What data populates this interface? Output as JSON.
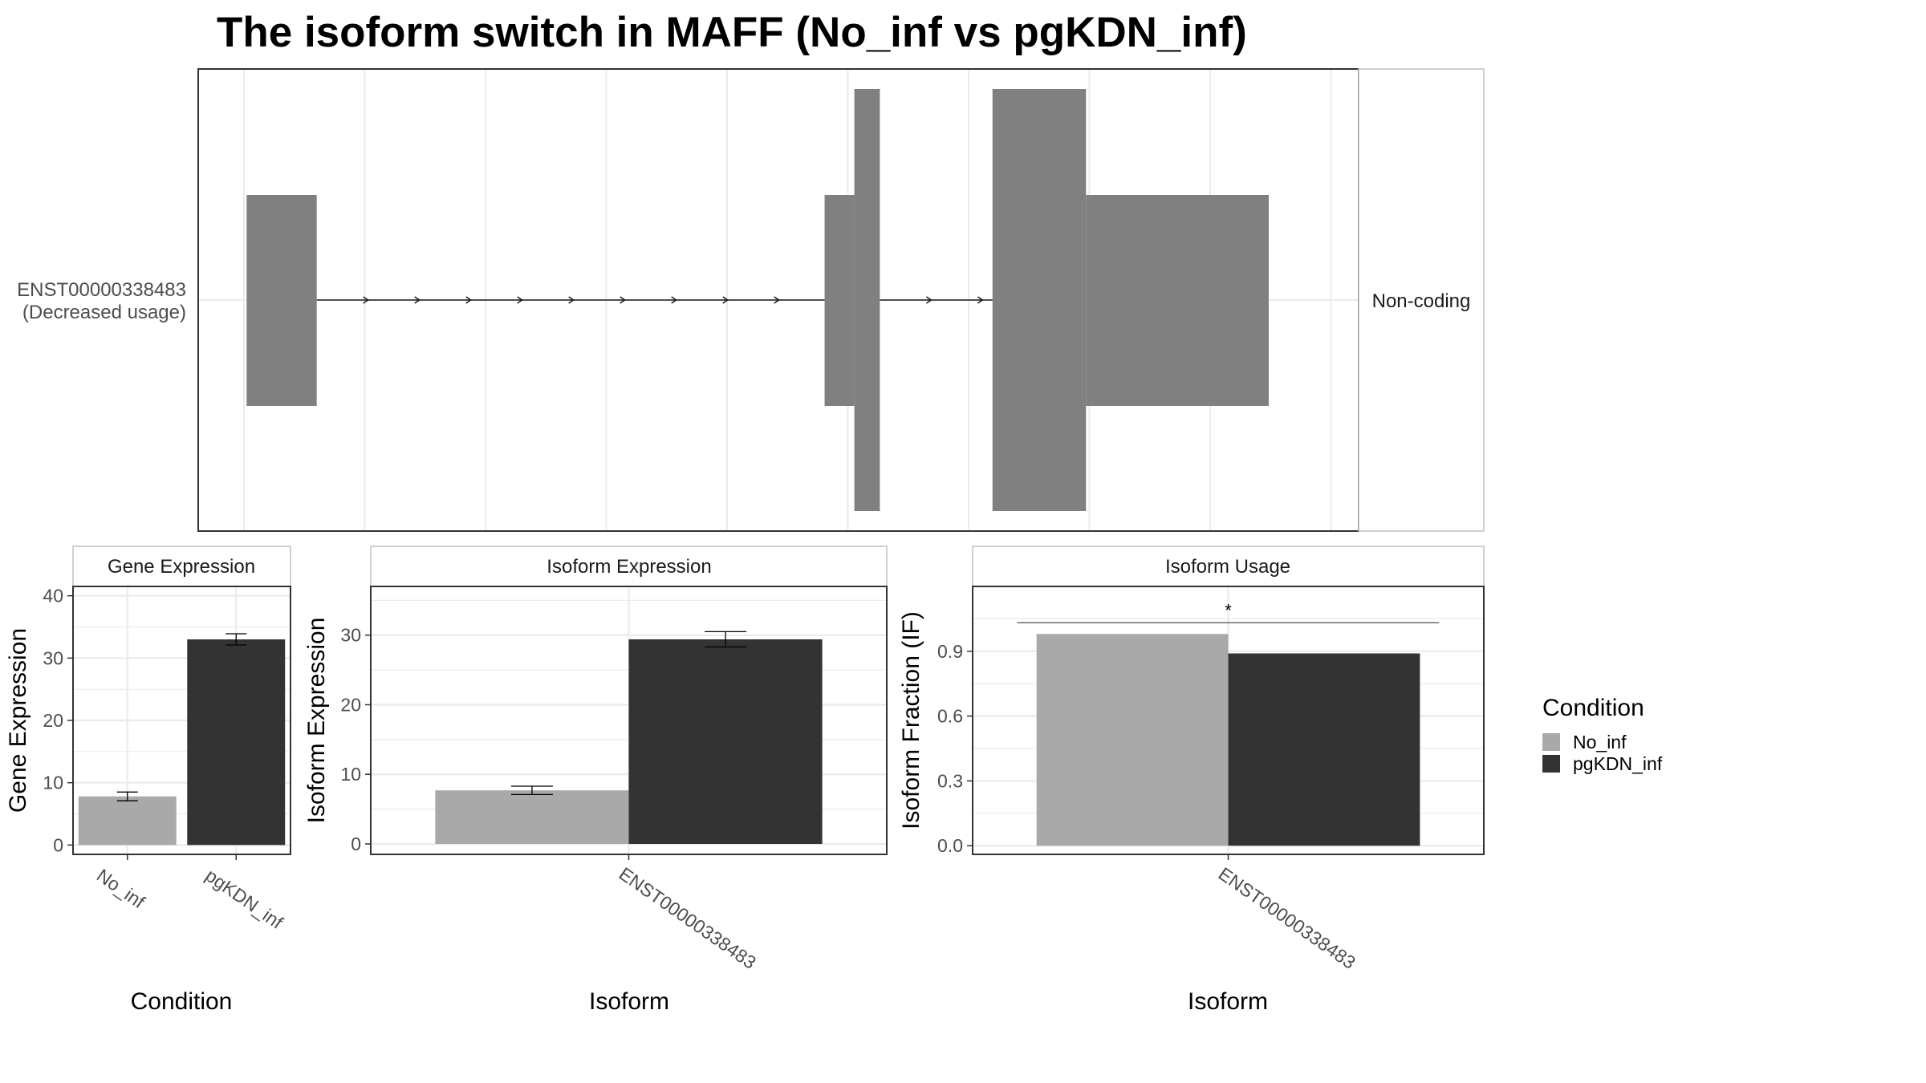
{
  "title": "The isoform switch in MAFF (No_inf vs pgKDN_inf)",
  "colors": {
    "No_inf": "#a9a9a9",
    "pgKDN_inf": "#333333",
    "feature": "#808080",
    "grid": "#ebebeb",
    "panel_border": "#333333",
    "strip_border": "#c0c0c0"
  },
  "structure": {
    "isoform_id_line": "ENST00000338483",
    "isoform_usage_line": "(Decreased usage)",
    "coding_label": "Non-coding",
    "x_range": [
      0,
      100
    ],
    "exons": [
      {
        "start": 0.4,
        "end": 7.0,
        "height": "small"
      },
      {
        "start": 54.8,
        "end": 57.6,
        "height": "small"
      },
      {
        "start": 57.6,
        "end": 60.0,
        "height": "large"
      },
      {
        "start": 70.6,
        "end": 79.4,
        "height": "large"
      },
      {
        "start": 79.4,
        "end": 96.6,
        "height": "small"
      }
    ],
    "introns": [
      {
        "start": 7.0,
        "end": 54.8
      },
      {
        "start": 60.0,
        "end": 70.6
      }
    ]
  },
  "chart_data": [
    {
      "type": "bar",
      "strip": "Gene Expression",
      "categories": [
        "No_inf",
        "pgKDN_inf"
      ],
      "values": [
        7.8,
        33.0
      ],
      "errors": [
        0.7,
        0.9
      ],
      "xlabel": "Condition",
      "ylabel": "Gene Expression",
      "ylim": [
        -1.5,
        41.5
      ],
      "yticks": [
        0,
        10,
        20,
        30,
        40
      ],
      "grid": true
    },
    {
      "type": "bar",
      "strip": "Isoform Expression",
      "categories": [
        "ENST00000338483"
      ],
      "series": [
        {
          "name": "No_inf",
          "values": [
            7.7
          ],
          "errors": [
            0.6
          ]
        },
        {
          "name": "pgKDN_inf",
          "values": [
            29.4
          ],
          "errors": [
            1.1
          ]
        }
      ],
      "xlabel": "Isoform",
      "ylabel": "Isoform Expression",
      "ylim": [
        -1.5,
        37.0
      ],
      "yticks": [
        0,
        10,
        20,
        30
      ],
      "grid": true
    },
    {
      "type": "bar",
      "strip": "Isoform Usage",
      "categories": [
        "ENST00000338483"
      ],
      "series": [
        {
          "name": "No_inf",
          "values": [
            0.98
          ]
        },
        {
          "name": "pgKDN_inf",
          "values": [
            0.89
          ]
        }
      ],
      "significance": "*",
      "xlabel": "Isoform",
      "ylabel": "Isoform Fraction (IF)",
      "ylim": [
        -0.04,
        1.2
      ],
      "yticks": [
        "0.0",
        "0.3",
        "0.6",
        "0.9"
      ],
      "grid": true
    }
  ],
  "legend": {
    "title": "Condition",
    "placement": "right",
    "entries": [
      "No_inf",
      "pgKDN_inf"
    ]
  }
}
